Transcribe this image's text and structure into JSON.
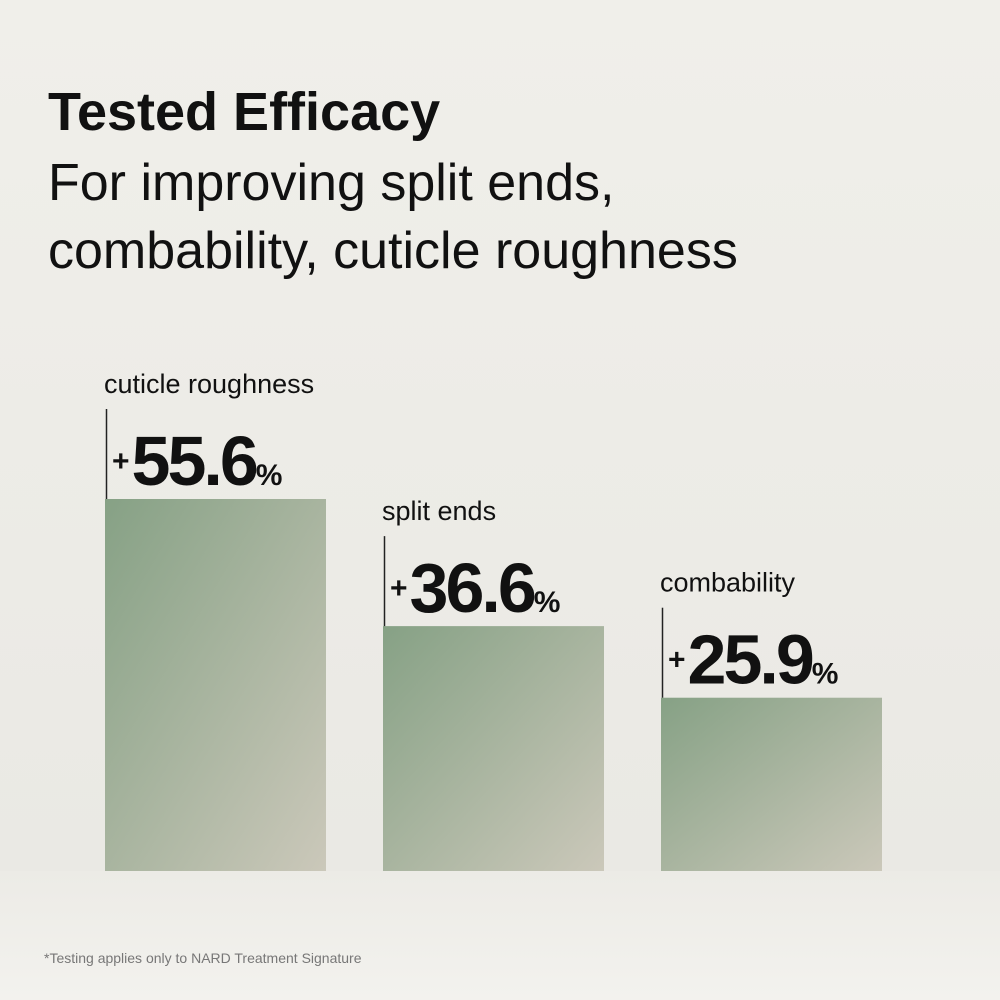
{
  "chart_data": {
    "type": "bar",
    "title": "Tested Efficacy",
    "subtitle": [
      "For improving split ends,",
      "combability, cuticle roughness"
    ],
    "categories": [
      "cuticle roughness",
      "split ends",
      "combability"
    ],
    "values": [
      55.6,
      36.6,
      25.9
    ],
    "value_labels": [
      "+55.6%",
      "+36.6%",
      "+25.9%"
    ],
    "color": [
      "#86a185",
      "#cbc8ba"
    ],
    "footnote": "*Testing applies only to NARD Treatment Signature"
  }
}
